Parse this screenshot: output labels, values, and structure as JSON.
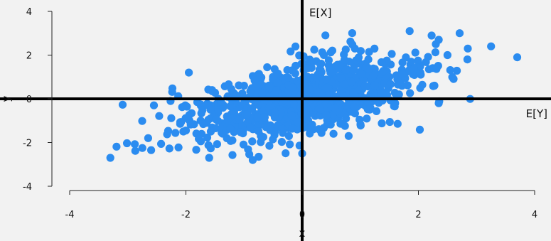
{
  "chart_data": {
    "type": "scatter",
    "xlabel": "x",
    "ylabel": "y",
    "xlim": [
      -4,
      4
    ],
    "ylim": [
      -4,
      4
    ],
    "x_ticks": [
      -4,
      -2,
      0,
      2,
      4
    ],
    "y_ticks": [
      -4,
      -2,
      0,
      2,
      4
    ],
    "grid": false,
    "point_color": "#2b8cf0",
    "reference_lines": {
      "vertical_x": 0,
      "horizontal_y": 0,
      "color": "#000000"
    },
    "annotations": {
      "vertical_line_label": "E[X]",
      "horizontal_line_label": "E[Y]"
    },
    "series": [
      {
        "n_points_approx": 1000,
        "points_sample": [
          [
            -3.3,
            -2.7
          ],
          [
            -2.75,
            -2.25
          ],
          [
            -2.65,
            -1.8
          ],
          [
            -2.55,
            -0.3
          ],
          [
            -2.0,
            -1.45
          ],
          [
            -1.95,
            1.2
          ],
          [
            -1.6,
            -2.7
          ],
          [
            -1.55,
            0.4
          ],
          [
            -1.2,
            -1.9
          ],
          [
            -0.85,
            -2.8
          ],
          [
            -0.6,
            0.3
          ],
          [
            -0.35,
            -1.2
          ],
          [
            0.0,
            0.05
          ],
          [
            0.0,
            -2.5
          ],
          [
            0.4,
            2.9
          ],
          [
            0.7,
            1.1
          ],
          [
            1.0,
            1.6
          ],
          [
            1.5,
            1.0
          ],
          [
            1.85,
            3.1
          ],
          [
            2.3,
            2.5
          ],
          [
            2.35,
            2.7
          ],
          [
            2.5,
            2.0
          ],
          [
            2.85,
            2.3
          ],
          [
            3.25,
            2.4
          ],
          [
            3.7,
            1.9
          ],
          [
            2.35,
            -0.2
          ],
          [
            1.6,
            -0.2
          ],
          [
            1.3,
            0.5
          ],
          [
            0.8,
            -1.7
          ],
          [
            -1.0,
            0.6
          ]
        ]
      }
    ]
  }
}
